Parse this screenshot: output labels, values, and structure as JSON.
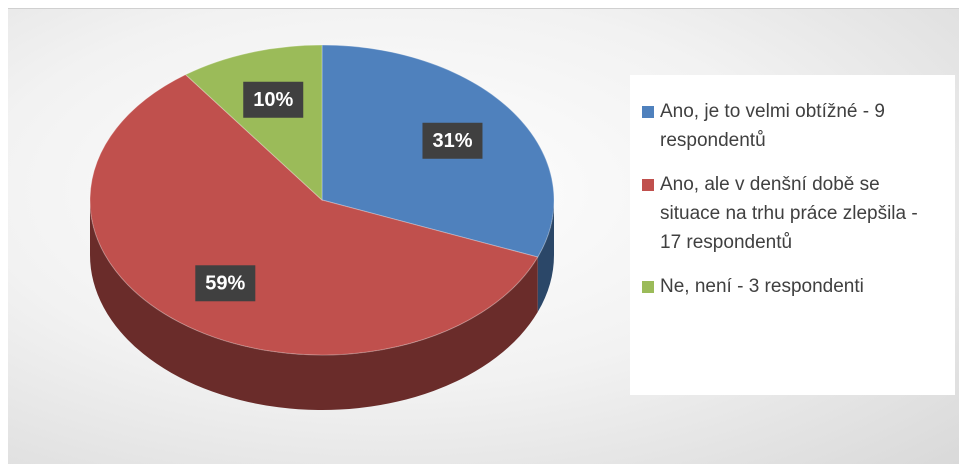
{
  "chart_data": {
    "type": "pie",
    "categories": [
      "Ano, je to velmi obtížné - 9 respondentů",
      "Ano, ale v denšní době se situace na trhu práce zlepšila - 17 respondentů",
      "Ne, není - 3 respondenti"
    ],
    "values": [
      31,
      59,
      10
    ],
    "value_labels": [
      "31%",
      "59%",
      "10%"
    ],
    "colors": [
      "#4f81bd",
      "#c0504d",
      "#9bbb59"
    ],
    "legend": "right"
  }
}
